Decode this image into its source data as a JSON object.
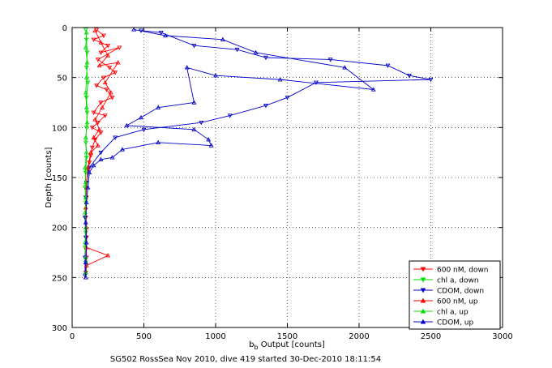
{
  "chart_data": {
    "type": "scatter",
    "caption": "SG502 RossSea Nov 2010, dive 419 started 30-Dec-2010 18:11:54",
    "xlabel_main": "b",
    "xlabel_sub": "b",
    "xlabel_rest": " Output [counts]",
    "ylabel": "Depth [counts]",
    "xlim": [
      0,
      3000
    ],
    "ylim": [
      0,
      300
    ],
    "y_reversed": true,
    "xticks": [
      0,
      500,
      1000,
      1500,
      2000,
      2500,
      3000
    ],
    "yticks": [
      0,
      50,
      100,
      150,
      200,
      250,
      300
    ],
    "grid": true,
    "legend_position": "bottom-right",
    "series": [
      {
        "name": "600 nM, down",
        "color": "#ff0000",
        "marker": "triangle-down",
        "points": [
          [
            170,
            2
          ],
          [
            220,
            8
          ],
          [
            150,
            12
          ],
          [
            250,
            18
          ],
          [
            200,
            25
          ],
          [
            330,
            20
          ],
          [
            180,
            32
          ],
          [
            260,
            40
          ],
          [
            300,
            45
          ],
          [
            220,
            50
          ],
          [
            170,
            58
          ],
          [
            240,
            62
          ],
          [
            280,
            70
          ],
          [
            200,
            75
          ],
          [
            150,
            85
          ],
          [
            230,
            88
          ],
          [
            180,
            95
          ],
          [
            140,
            100
          ],
          [
            200,
            105
          ],
          [
            160,
            112
          ],
          [
            140,
            120
          ],
          [
            130,
            128
          ],
          [
            120,
            135
          ],
          [
            110,
            142
          ],
          [
            100,
            155
          ],
          [
            100,
            170
          ],
          [
            95,
            190
          ],
          [
            100,
            210
          ],
          [
            100,
            230
          ],
          [
            95,
            245
          ]
        ]
      },
      {
        "name": "chl a, down",
        "color": "#00dd00",
        "marker": "triangle-down",
        "points": [
          [
            95,
            2
          ],
          [
            100,
            12
          ],
          [
            105,
            25
          ],
          [
            100,
            40
          ],
          [
            110,
            55
          ],
          [
            100,
            70
          ],
          [
            105,
            85
          ],
          [
            100,
            100
          ],
          [
            95,
            115
          ],
          [
            100,
            130
          ],
          [
            95,
            145
          ],
          [
            90,
            160
          ],
          [
            95,
            175
          ],
          [
            90,
            190
          ],
          [
            95,
            205
          ],
          [
            90,
            220
          ],
          [
            95,
            235
          ],
          [
            90,
            248
          ]
        ]
      },
      {
        "name": "CDOM, down",
        "color": "#0000cc",
        "marker": "triangle-down",
        "points": [
          [
            480,
            3
          ],
          [
            620,
            5
          ],
          [
            850,
            18
          ],
          [
            1150,
            22
          ],
          [
            1350,
            30
          ],
          [
            1800,
            32
          ],
          [
            2200,
            38
          ],
          [
            2350,
            48
          ],
          [
            2500,
            52
          ],
          [
            1700,
            55
          ],
          [
            1500,
            70
          ],
          [
            1350,
            78
          ],
          [
            1100,
            88
          ],
          [
            900,
            95
          ],
          [
            500,
            102
          ],
          [
            300,
            110
          ],
          [
            200,
            125
          ],
          [
            120,
            140
          ],
          [
            100,
            155
          ],
          [
            95,
            170
          ],
          [
            90,
            190
          ],
          [
            95,
            210
          ],
          [
            90,
            230
          ],
          [
            90,
            248
          ]
        ]
      },
      {
        "name": "600 nM, up",
        "color": "#ff0000",
        "marker": "triangle-up",
        "points": [
          [
            160,
            3
          ],
          [
            200,
            15
          ],
          [
            250,
            28
          ],
          [
            190,
            38
          ],
          [
            320,
            35
          ],
          [
            230,
            55
          ],
          [
            270,
            65
          ],
          [
            210,
            80
          ],
          [
            160,
            92
          ],
          [
            190,
            102
          ],
          [
            150,
            110
          ],
          [
            180,
            118
          ],
          [
            130,
            125
          ],
          [
            110,
            140
          ],
          [
            100,
            160
          ],
          [
            95,
            180
          ],
          [
            100,
            200
          ],
          [
            100,
            220
          ],
          [
            250,
            228
          ],
          [
            100,
            238
          ],
          [
            95,
            250
          ]
        ]
      },
      {
        "name": "chl a, up",
        "color": "#00dd00",
        "marker": "triangle-up",
        "points": [
          [
            100,
            5
          ],
          [
            95,
            20
          ],
          [
            105,
            35
          ],
          [
            100,
            50
          ],
          [
            95,
            65
          ],
          [
            100,
            80
          ],
          [
            105,
            95
          ],
          [
            95,
            110
          ],
          [
            100,
            125
          ],
          [
            90,
            140
          ],
          [
            95,
            155
          ],
          [
            95,
            170
          ],
          [
            90,
            185
          ],
          [
            95,
            200
          ],
          [
            90,
            215
          ],
          [
            95,
            230
          ],
          [
            95,
            245
          ]
        ]
      },
      {
        "name": "CDOM, up",
        "color": "#0000cc",
        "marker": "triangle-up",
        "points": [
          [
            430,
            2
          ],
          [
            650,
            8
          ],
          [
            1050,
            12
          ],
          [
            1280,
            25
          ],
          [
            1900,
            40
          ],
          [
            2100,
            62
          ],
          [
            1450,
            52
          ],
          [
            1000,
            48
          ],
          [
            800,
            40
          ],
          [
            850,
            75
          ],
          [
            600,
            80
          ],
          [
            480,
            90
          ],
          [
            380,
            98
          ],
          [
            850,
            102
          ],
          [
            950,
            112
          ],
          [
            970,
            118
          ],
          [
            600,
            115
          ],
          [
            350,
            122
          ],
          [
            280,
            130
          ],
          [
            200,
            132
          ],
          [
            150,
            138
          ],
          [
            120,
            145
          ],
          [
            110,
            160
          ],
          [
            100,
            175
          ],
          [
            95,
            195
          ],
          [
            100,
            215
          ],
          [
            95,
            235
          ],
          [
            95,
            250
          ]
        ]
      }
    ]
  }
}
